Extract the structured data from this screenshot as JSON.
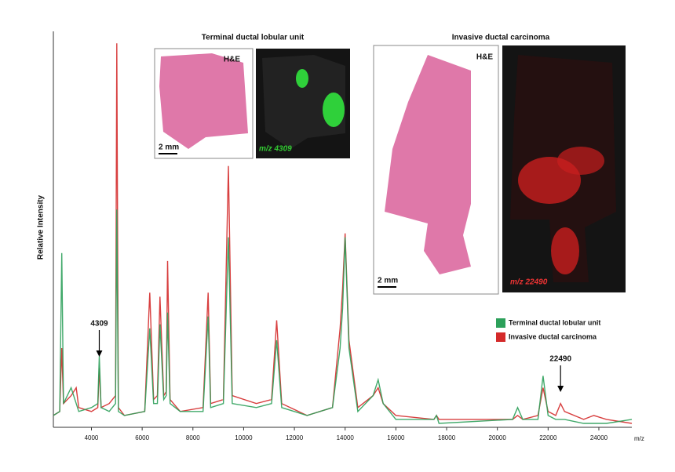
{
  "chart_data": {
    "type": "line",
    "ylabel": "Relative Intensity",
    "xlabel": "m/z",
    "xlim": [
      2500,
      25300
    ],
    "xticks": [
      4000,
      6000,
      8000,
      10000,
      12000,
      14000,
      16000,
      18000,
      20000,
      22000,
      24000
    ],
    "ylim": [
      0,
      100
    ],
    "x": [
      2500,
      2750,
      2830,
      2900,
      3200,
      3400,
      3500,
      4000,
      4250,
      4309,
      4380,
      4700,
      4950,
      5000,
      5060,
      5300,
      6100,
      6300,
      6450,
      6600,
      6700,
      6850,
      6950,
      7000,
      7100,
      7500,
      8400,
      8600,
      8700,
      9200,
      9400,
      9550,
      10500,
      11100,
      11300,
      11500,
      12500,
      13500,
      13800,
      13900,
      14000,
      14150,
      14500,
      15100,
      15300,
      15500,
      16000,
      17500,
      17600,
      17700,
      20600,
      20800,
      21000,
      21600,
      21800,
      22000,
      22300,
      22490,
      22650,
      23400,
      23800,
      24300,
      25300
    ],
    "series": [
      {
        "name": "Terminal ductal lobular unit",
        "color": "#2ca05a",
        "values": [
          3,
          4,
          44,
          6,
          10,
          6,
          4,
          5,
          6,
          18,
          5,
          4,
          6,
          55,
          4,
          3,
          4,
          25,
          6,
          6,
          26,
          7,
          8,
          29,
          6,
          4,
          4,
          28,
          5,
          6,
          48,
          6,
          5,
          6,
          22,
          5,
          3,
          5,
          20,
          30,
          48,
          20,
          4,
          8,
          12,
          6,
          2,
          2,
          3,
          1,
          2,
          5,
          2,
          2,
          13,
          3,
          2,
          2,
          2,
          1,
          1,
          1,
          2
        ]
      },
      {
        "name": "Invasive ductal carcinoma",
        "color": "#d42a2a",
        "values": [
          3,
          4,
          20,
          6,
          8,
          10,
          5,
          4,
          5,
          15,
          5,
          6,
          8,
          97,
          5,
          3,
          4,
          34,
          7,
          8,
          33,
          8,
          9,
          42,
          7,
          4,
          5,
          34,
          6,
          7,
          66,
          8,
          6,
          7,
          27,
          6,
          3,
          5,
          25,
          35,
          49,
          22,
          5,
          8,
          10,
          6,
          3,
          2,
          3,
          2,
          2,
          3,
          2,
          3,
          10,
          4,
          3,
          6,
          4,
          2,
          3,
          2,
          1
        ]
      }
    ],
    "annotations": [
      4309,
      22490
    ],
    "legend": "right",
    "insets": [
      {
        "title": "Terminal ductal lobular unit",
        "stain": "H&E",
        "scale": "2 mm",
        "ion_label": "m/z 4309"
      },
      {
        "title": "Invasive ductal carcinoma",
        "stain": "H&E",
        "scale": "2 mm",
        "ion_label": "m/z 22490"
      }
    ]
  }
}
